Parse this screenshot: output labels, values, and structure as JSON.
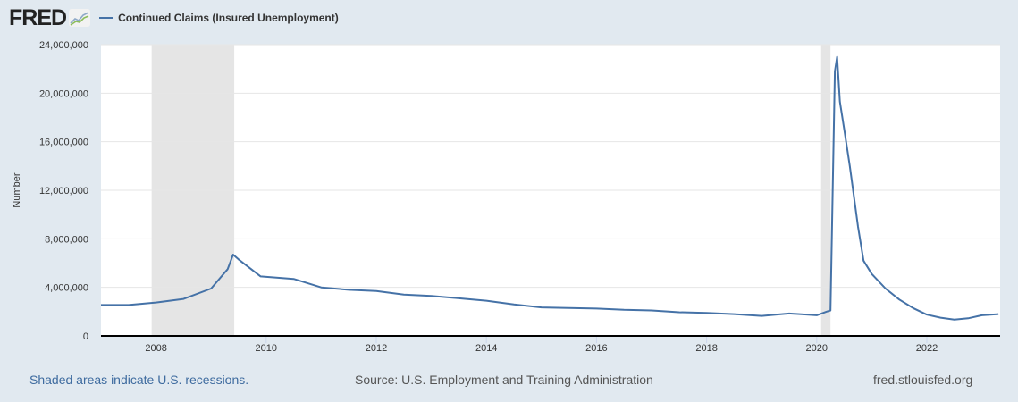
{
  "header": {
    "logo": "FRED",
    "legend_label": "Continued Claims (Insured Unemployment)",
    "series_color": "#4572a7"
  },
  "footer": {
    "recession_note": "Shaded areas indicate U.S. recessions.",
    "source": "Source: U.S. Employment and Training Administration",
    "site": "fred.stlouisfed.org"
  },
  "chart_data": {
    "type": "line",
    "title": "Continued Claims (Insured Unemployment)",
    "xlabel": "",
    "ylabel": "Number",
    "ylim": [
      0,
      24000000
    ],
    "yticks": [
      "0",
      "4,000,000",
      "8,000,000",
      "12,000,000",
      "16,000,000",
      "20,000,000",
      "24,000,000"
    ],
    "xticks": [
      "2008",
      "2010",
      "2012",
      "2014",
      "2016",
      "2018",
      "2020",
      "2022"
    ],
    "grid": true,
    "legend_position": "top-left",
    "recessions": [
      [
        2007.92,
        2009.42
      ],
      [
        2020.08,
        2020.25
      ]
    ],
    "series": [
      {
        "name": "Continued Claims (Insured Unemployment)",
        "x": [
          2007.0,
          2007.5,
          2008.0,
          2008.5,
          2009.0,
          2009.3,
          2009.4,
          2009.5,
          2009.9,
          2010.5,
          2011.0,
          2011.5,
          2012.0,
          2012.5,
          2013.0,
          2013.5,
          2014.0,
          2014.5,
          2015.0,
          2015.5,
          2016.0,
          2016.5,
          2017.0,
          2017.5,
          2018.0,
          2018.5,
          2019.0,
          2019.5,
          2020.0,
          2020.18,
          2020.25,
          2020.33,
          2020.37,
          2020.42,
          2020.5,
          2020.6,
          2020.75,
          2020.85,
          2021.0,
          2021.25,
          2021.5,
          2021.75,
          2022.0,
          2022.25,
          2022.5,
          2022.75,
          2023.0,
          2023.3
        ],
        "values": [
          2550000,
          2550000,
          2750000,
          3050000,
          3900000,
          5500000,
          6700000,
          6300000,
          4900000,
          4700000,
          4000000,
          3800000,
          3700000,
          3400000,
          3300000,
          3100000,
          2900000,
          2600000,
          2350000,
          2300000,
          2250000,
          2150000,
          2100000,
          1950000,
          1900000,
          1800000,
          1650000,
          1850000,
          1700000,
          2000000,
          2100000,
          21800000,
          23000000,
          19300000,
          17000000,
          14000000,
          9000000,
          6200000,
          5100000,
          3900000,
          3000000,
          2300000,
          1750000,
          1500000,
          1350000,
          1450000,
          1700000,
          1800000
        ]
      }
    ]
  }
}
